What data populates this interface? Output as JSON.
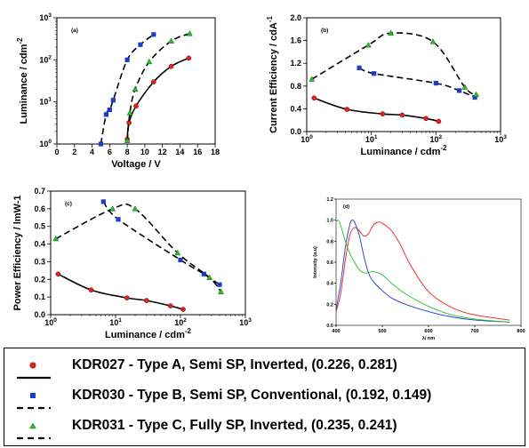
{
  "chart_data": [
    {
      "id": "a",
      "type": "scatter",
      "panel_label": "(a)",
      "xlabel": "Voltage / V",
      "ylabel": "Luminance / cdm",
      "ylabel_sup": "-2",
      "x_scale": "linear",
      "y_scale": "log",
      "xlim": [
        0,
        18
      ],
      "ylim": [
        1,
        1000
      ],
      "x_ticks": [
        "0",
        "2",
        "4",
        "6",
        "8",
        "10",
        "12",
        "14",
        "16",
        "18"
      ],
      "y_ticks": [
        "1",
        "10",
        "100",
        "1000"
      ],
      "y_tick_base": "10",
      "y_tick_exps": [
        "0",
        "1",
        "2",
        "3"
      ],
      "series": [
        {
          "name": "KDR027",
          "marker": "circle",
          "color": "#e8201c",
          "line": "solid",
          "x": [
            8,
            8.2,
            9,
            11,
            13,
            15
          ],
          "y": [
            1.3,
            3.2,
            8,
            30,
            70,
            110
          ]
        },
        {
          "name": "KDR030",
          "marker": "square",
          "color": "#1c3ccc",
          "line": "dashed",
          "x": [
            5,
            5.6,
            6,
            6.4,
            8,
            9.5,
            11
          ],
          "y": [
            1,
            5,
            6.5,
            11,
            100,
            230,
            400
          ]
        },
        {
          "name": "KDR031",
          "marker": "triangle",
          "color": "#28c028",
          "line": "dashed",
          "x": [
            8,
            8.3,
            8.9,
            10.5,
            13,
            15.1
          ],
          "y": [
            1.2,
            5.5,
            20,
            90,
            280,
            420
          ]
        }
      ]
    },
    {
      "id": "b",
      "type": "scatter",
      "panel_label": "(b)",
      "xlabel": "Luminance / cdm",
      "xlabel_sup": "-2",
      "ylabel": "Current Efficiency / cdA",
      "ylabel_sup": "-1",
      "x_scale": "log",
      "y_scale": "linear",
      "xlim": [
        1,
        1000
      ],
      "ylim": [
        0,
        2.0
      ],
      "x_ticks": [
        "1",
        "10",
        "100",
        "1000"
      ],
      "x_tick_base": "10",
      "x_tick_exps": [
        "0",
        "1",
        "2",
        "3"
      ],
      "y_ticks": [
        "0.0",
        "0.4",
        "0.8",
        "1.2",
        "1.6",
        "2.0"
      ],
      "series": [
        {
          "name": "KDR027",
          "marker": "circle",
          "color": "#e8201c",
          "line": "solid",
          "x": [
            1.3,
            4.2,
            15,
            30,
            70,
            110
          ],
          "y": [
            0.59,
            0.39,
            0.31,
            0.29,
            0.23,
            0.18
          ]
        },
        {
          "name": "KDR030",
          "marker": "square",
          "color": "#1c3ccc",
          "line": "dashed",
          "x": [
            6.5,
            11,
            100,
            230,
            400
          ],
          "y": [
            1.12,
            1.02,
            0.85,
            0.72,
            0.6
          ]
        },
        {
          "name": "KDR031",
          "marker": "triangle",
          "color": "#28c028",
          "line": "dashed",
          "x": [
            1.2,
            9,
            20,
            90,
            280,
            420
          ],
          "y": [
            0.92,
            1.52,
            1.73,
            1.58,
            0.78,
            0.65
          ]
        }
      ]
    },
    {
      "id": "c",
      "type": "scatter",
      "panel_label": "(c)",
      "xlabel": "Luminance / cdm",
      "xlabel_sup": "-2",
      "ylabel": "Power Efficiency / lmW-1",
      "x_scale": "log",
      "y_scale": "linear",
      "xlim": [
        1,
        1000
      ],
      "ylim": [
        0,
        0.7
      ],
      "x_ticks": [
        "1",
        "10",
        "100",
        "1000"
      ],
      "x_tick_base": "10",
      "x_tick_exps": [
        "0",
        "1",
        "2",
        "3"
      ],
      "y_ticks": [
        "0.0",
        "0.1",
        "0.2",
        "0.3",
        "0.4",
        "0.5",
        "0.6",
        "0.7"
      ],
      "series": [
        {
          "name": "KDR027",
          "marker": "circle",
          "color": "#e8201c",
          "line": "solid",
          "x": [
            1.3,
            4.2,
            15,
            30,
            70,
            110
          ],
          "y": [
            0.23,
            0.14,
            0.095,
            0.08,
            0.05,
            0.03
          ]
        },
        {
          "name": "KDR030",
          "marker": "square",
          "color": "#1c3ccc",
          "line": "dashed",
          "x": [
            6.5,
            11,
            100,
            230,
            400
          ],
          "y": [
            0.64,
            0.54,
            0.31,
            0.23,
            0.17
          ]
        },
        {
          "name": "KDR031",
          "marker": "triangle",
          "color": "#28c028",
          "line": "dashed",
          "x": [
            1.2,
            9,
            20,
            90,
            280,
            420
          ],
          "y": [
            0.43,
            0.6,
            0.6,
            0.35,
            0.21,
            0.13
          ]
        }
      ]
    },
    {
      "id": "d",
      "type": "line",
      "panel_label": "(d)",
      "xlabel": "λ/ nm",
      "ylabel": "Intensity (a.u)",
      "xlim": [
        400,
        800
      ],
      "ylim": [
        0,
        1.2
      ],
      "x_ticks": [
        "400",
        "500",
        "600",
        "700",
        "800"
      ],
      "y_ticks": [
        "0.0",
        "0.2",
        "0.4",
        "0.6",
        "0.8",
        "1.0",
        "1.2"
      ],
      "series": [
        {
          "name": "KDR027",
          "color": "#e8201c",
          "x": [
            400,
            410,
            420,
            430,
            440,
            450,
            460,
            470,
            480,
            490,
            500,
            520,
            540,
            560,
            600,
            650,
            700,
            775
          ],
          "y": [
            0.13,
            0.3,
            0.62,
            0.86,
            0.93,
            0.9,
            0.85,
            0.87,
            0.95,
            0.98,
            0.97,
            0.9,
            0.76,
            0.58,
            0.32,
            0.17,
            0.1,
            0.05
          ]
        },
        {
          "name": "KDR030",
          "color": "#1c3ccc",
          "x": [
            400,
            410,
            420,
            430,
            435,
            440,
            450,
            460,
            470,
            480,
            500,
            520,
            550,
            600,
            650,
            700,
            775
          ],
          "y": [
            0.15,
            0.4,
            0.74,
            0.96,
            1.0,
            0.98,
            0.86,
            0.66,
            0.5,
            0.42,
            0.33,
            0.26,
            0.2,
            0.13,
            0.08,
            0.05,
            0.03
          ]
        },
        {
          "name": "KDR031",
          "color": "#28c028",
          "x": [
            400,
            405,
            410,
            420,
            430,
            440,
            450,
            460,
            470,
            480,
            500,
            520,
            550,
            600,
            650,
            700,
            775
          ],
          "y": [
            0.98,
            1.0,
            0.95,
            0.8,
            0.68,
            0.6,
            0.53,
            0.5,
            0.5,
            0.51,
            0.48,
            0.4,
            0.3,
            0.18,
            0.1,
            0.06,
            0.03
          ]
        }
      ]
    }
  ],
  "legend": {
    "entries": [
      {
        "label": "KDR027 - Type A, Semi SP, Inverted, (0.226, 0.281)",
        "marker": "circle",
        "color": "#e8201c",
        "line": "solid"
      },
      {
        "label": "KDR030 - Type B, Semi SP, Conventional, (0.192, 0.149)",
        "marker": "square",
        "color": "#1c3ccc",
        "line": "dashed"
      },
      {
        "label": "KDR031 - Type C, Fully SP, Inverted, (0.235, 0.241)",
        "marker": "triangle",
        "color": "#28c028",
        "line": "dashed"
      }
    ]
  }
}
